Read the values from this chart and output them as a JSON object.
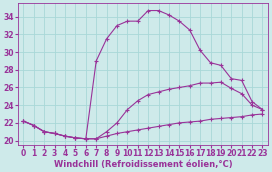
{
  "xlabel": "Windchill (Refroidissement éolien,°C)",
  "background_color": "#ceeaea",
  "line_color": "#993399",
  "grid_color": "#a8d8d8",
  "x_hours": [
    0,
    1,
    2,
    3,
    4,
    5,
    6,
    7,
    8,
    9,
    10,
    11,
    12,
    13,
    14,
    15,
    16,
    17,
    18,
    19,
    20,
    21,
    22,
    23
  ],
  "series": [
    [
      22.2,
      21.7,
      21.0,
      20.8,
      20.5,
      20.3,
      20.2,
      20.2,
      20.5,
      20.8,
      21.0,
      21.2,
      21.4,
      21.6,
      21.8,
      22.0,
      22.1,
      22.2,
      22.4,
      22.5,
      22.6,
      22.7,
      22.9,
      23.0
    ],
    [
      22.2,
      21.7,
      21.0,
      20.8,
      20.5,
      20.3,
      20.2,
      20.2,
      21.0,
      22.0,
      23.5,
      24.5,
      25.2,
      25.5,
      25.8,
      26.0,
      26.2,
      26.5,
      26.5,
      26.6,
      25.9,
      25.3,
      24.0,
      23.5
    ],
    [
      22.2,
      21.7,
      21.0,
      20.8,
      20.5,
      20.3,
      20.2,
      29.0,
      31.5,
      33.0,
      33.5,
      33.5,
      34.7,
      34.7,
      34.2,
      33.5,
      32.5,
      30.2,
      28.8,
      28.5,
      27.0,
      26.8,
      24.4,
      23.5
    ]
  ],
  "ylim": [
    19.5,
    35.5
  ],
  "xlim": [
    -0.5,
    23.5
  ],
  "yticks": [
    20,
    22,
    24,
    26,
    28,
    30,
    32,
    34
  ],
  "xticks": [
    0,
    1,
    2,
    3,
    4,
    5,
    6,
    7,
    8,
    9,
    10,
    11,
    12,
    13,
    14,
    15,
    16,
    17,
    18,
    19,
    20,
    21,
    22,
    23
  ],
  "tick_fontsize": 5.5,
  "xlabel_fontsize": 6.0,
  "figsize": [
    2.72,
    1.72
  ],
  "dpi": 100
}
